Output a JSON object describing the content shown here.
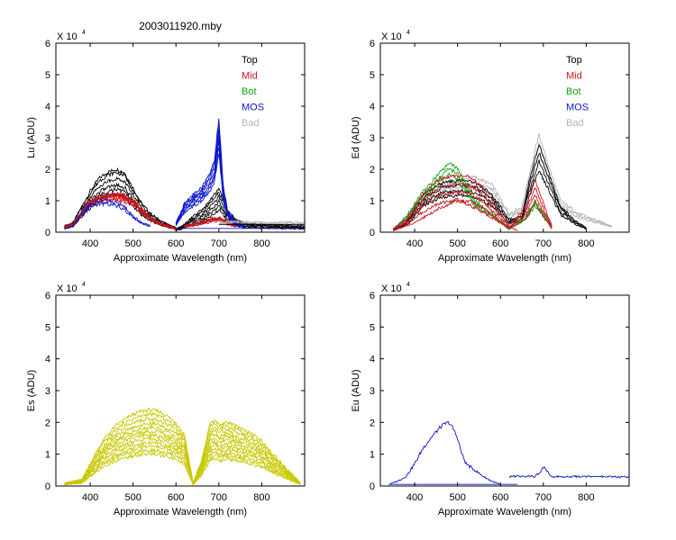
{
  "figure_title": "2003011920.mby",
  "colors": {
    "Top": "#000000",
    "Mid": "#c8141e",
    "Bot": "#16a016",
    "MOS": "#0a14c8",
    "Bad": "#b4b4b4",
    "Es": "#c8c800",
    "Eu": "#0a14c8"
  },
  "chart_data": [
    {
      "type": "line",
      "id": "lu",
      "xlabel": "Approximate Wavelength (nm)",
      "ylabel": "Lu (ADU)",
      "exponent_label": "X 10",
      "exponent": "4",
      "xlim": [
        320,
        900
      ],
      "ylim": [
        0,
        6
      ],
      "xticks": [
        "400",
        "500",
        "600",
        "700",
        "800"
      ],
      "yticks": [
        "0",
        "1",
        "2",
        "3",
        "4",
        "5",
        "6"
      ],
      "legend": [
        "Top",
        "Mid",
        "Bot",
        "MOS",
        "Bad"
      ],
      "series": [
        {
          "name": "Top",
          "color_key": "Top",
          "count": 6,
          "x": [
            340,
            360,
            380,
            400,
            420,
            440,
            460,
            480,
            500,
            520,
            540,
            560,
            580,
            600
          ],
          "values": [
            0.2,
            0.3,
            0.8,
            1.3,
            1.7,
            1.9,
            2.0,
            1.9,
            1.4,
            0.9,
            0.6,
            0.4,
            0.25,
            0.15
          ],
          "scale": [
            1.0,
            0.95,
            0.85,
            0.75,
            0.68,
            0.6
          ]
        },
        {
          "name": "Top",
          "color_key": "Top",
          "count": 6,
          "x": [
            600,
            620,
            640,
            660,
            680,
            690,
            700,
            710,
            720,
            740,
            760,
            800,
            900
          ],
          "values": [
            0.1,
            0.25,
            0.5,
            0.7,
            1.0,
            1.2,
            1.4,
            1.1,
            0.7,
            0.4,
            0.3,
            0.25,
            0.2
          ],
          "scale": [
            1.0,
            0.9,
            0.8,
            0.7,
            0.6,
            0.5
          ]
        },
        {
          "name": "Mid",
          "color_key": "Mid",
          "count": 4,
          "x": [
            340,
            360,
            380,
            400,
            420,
            440,
            460,
            480,
            500,
            520,
            540,
            560,
            580,
            600
          ],
          "values": [
            0.15,
            0.25,
            0.6,
            1.0,
            1.1,
            1.15,
            1.2,
            1.15,
            1.0,
            0.7,
            0.45,
            0.3,
            0.2,
            0.1
          ],
          "scale": [
            1.0,
            0.95,
            0.9,
            0.85
          ]
        },
        {
          "name": "Mid",
          "color_key": "Mid",
          "count": 3,
          "x": [
            620,
            640,
            660,
            680,
            700,
            710,
            720,
            740
          ],
          "values": [
            0.2,
            0.25,
            0.3,
            0.4,
            0.45,
            0.4,
            0.3,
            0.2
          ],
          "scale": [
            1.0,
            0.9,
            0.8
          ]
        },
        {
          "name": "MOS",
          "color_key": "MOS",
          "count": 7,
          "x": [
            600,
            620,
            640,
            660,
            680,
            690,
            695,
            700,
            705,
            710,
            720,
            740,
            760
          ],
          "values": [
            0.3,
            0.9,
            1.2,
            1.4,
            1.9,
            2.3,
            3.0,
            3.6,
            2.6,
            1.5,
            0.7,
            0.3,
            0.2
          ],
          "scale": [
            1.0,
            0.95,
            0.9,
            0.85,
            0.8,
            0.75,
            0.7
          ]
        },
        {
          "name": "MOS",
          "color_key": "MOS",
          "count": 2,
          "x": [
            340,
            360,
            380,
            400,
            420,
            440,
            460,
            480,
            500,
            520,
            540
          ],
          "values": [
            0.1,
            0.2,
            0.6,
            0.9,
            1.0,
            1.0,
            0.95,
            0.8,
            0.5,
            0.3,
            0.2
          ],
          "scale": [
            1.0,
            0.9
          ]
        },
        {
          "name": "Bad",
          "color_key": "Bad",
          "count": 2,
          "x": [
            700,
            740,
            780,
            820,
            860,
            900
          ],
          "values": [
            0.3,
            0.35,
            0.32,
            0.3,
            0.32,
            0.3
          ],
          "scale": [
            1.0,
            0.9
          ]
        },
        {
          "name": "Top",
          "color_key": "Top",
          "count": 1,
          "x": [
            700,
            900
          ],
          "values": [
            0.25,
            0.25
          ],
          "scale": [
            1.0
          ]
        },
        {
          "name": "MOS",
          "color_key": "MOS",
          "count": 1,
          "x": [
            600,
            900
          ],
          "values": [
            0.12,
            0.12
          ],
          "scale": [
            1.0
          ]
        }
      ]
    },
    {
      "type": "line",
      "id": "ed",
      "xlabel": "Approximate Wavelength (nm)",
      "ylabel": "Ed  (ADU)",
      "exponent_label": "X 10",
      "exponent": "4",
      "xlim": [
        320,
        900
      ],
      "ylim": [
        0,
        6
      ],
      "xticks": [
        "400",
        "500",
        "600",
        "700",
        "800"
      ],
      "yticks": [
        "0",
        "1",
        "2",
        "3",
        "4",
        "5",
        "6"
      ],
      "legend": [
        "Top",
        "Mid",
        "Bot",
        "MOS",
        "Bad"
      ],
      "series": [
        {
          "name": "Bad",
          "color_key": "Bad",
          "count": 3,
          "x": [
            350,
            380,
            420,
            460,
            500,
            540,
            580,
            620,
            650,
            670,
            690,
            710,
            740,
            780,
            820,
            860
          ],
          "values": [
            0.1,
            0.4,
            1.2,
            1.5,
            1.6,
            1.75,
            1.5,
            0.6,
            0.8,
            2.0,
            3.1,
            2.2,
            1.0,
            0.6,
            0.4,
            0.2
          ],
          "scale": [
            1.0,
            0.9,
            0.8
          ]
        },
        {
          "name": "Top",
          "color_key": "Top",
          "count": 4,
          "x": [
            350,
            380,
            420,
            460,
            500,
            540,
            580,
            620,
            650,
            670,
            690,
            710,
            740,
            780,
            800
          ],
          "values": [
            0.1,
            0.3,
            1.2,
            1.55,
            1.65,
            1.6,
            1.2,
            0.4,
            0.5,
            1.8,
            2.8,
            2.0,
            0.8,
            0.3,
            0.15
          ],
          "scale": [
            1.0,
            0.9,
            0.8,
            0.7
          ]
        },
        {
          "name": "Bot",
          "color_key": "Bot",
          "count": 3,
          "x": [
            350,
            380,
            420,
            460,
            480,
            500,
            520,
            540,
            560,
            580,
            620,
            660,
            680,
            700,
            720
          ],
          "values": [
            0.1,
            0.5,
            1.3,
            1.9,
            2.2,
            2.0,
            1.5,
            1.0,
            0.8,
            0.6,
            0.1,
            0.5,
            1.0,
            0.6,
            0.2
          ],
          "scale": [
            1.0,
            0.92,
            0.84
          ]
        },
        {
          "name": "Mid",
          "color_key": "Mid",
          "count": 4,
          "x": [
            350,
            380,
            420,
            460,
            500,
            530,
            560,
            590,
            620,
            660,
            680,
            700,
            720
          ],
          "values": [
            0.1,
            0.4,
            1.2,
            1.7,
            1.8,
            1.75,
            1.4,
            0.8,
            0.2,
            0.8,
            1.7,
            0.9,
            0.2
          ],
          "scale": [
            1.0,
            0.85,
            0.7,
            0.55
          ]
        },
        {
          "name": "Mid",
          "color_key": "Mid",
          "count": 1,
          "x": [
            350,
            400,
            450,
            500,
            550,
            600,
            640
          ],
          "values": [
            0.05,
            0.3,
            0.7,
            1.05,
            0.7,
            0.3,
            0.05
          ],
          "scale": [
            1.0
          ]
        }
      ]
    },
    {
      "type": "line",
      "id": "es",
      "xlabel": "Approximate Wavelength (nm)",
      "ylabel": "Es  (ADU)",
      "exponent_label": "X 10",
      "exponent": "4",
      "xlim": [
        320,
        900
      ],
      "ylim": [
        0,
        6
      ],
      "xticks": [
        "400",
        "500",
        "600",
        "700",
        "800"
      ],
      "yticks": [
        "0",
        "1",
        "2",
        "3",
        "4",
        "5",
        "6"
      ],
      "legend": [],
      "series": [
        {
          "name": "Es",
          "color_key": "Es",
          "count": 12,
          "x": [
            340,
            380,
            400,
            420,
            440,
            460,
            480,
            500,
            520,
            540,
            560,
            580,
            600,
            620,
            640
          ],
          "values": [
            0.1,
            0.2,
            0.7,
            1.2,
            1.6,
            1.9,
            2.1,
            2.25,
            2.35,
            2.4,
            2.35,
            2.2,
            2.0,
            1.6,
            0.1
          ],
          "scale": [
            1.0,
            0.94,
            0.88,
            0.82,
            0.77,
            0.72,
            0.67,
            0.62,
            0.57,
            0.52,
            0.47,
            0.42
          ]
        },
        {
          "name": "Es",
          "color_key": "Es",
          "count": 12,
          "x": [
            640,
            660,
            680,
            690,
            700,
            710,
            720,
            740,
            760,
            780,
            800,
            820,
            840,
            860,
            880,
            890
          ],
          "values": [
            0.1,
            0.8,
            2.0,
            2.1,
            1.9,
            1.95,
            2.0,
            1.9,
            1.75,
            1.6,
            1.4,
            1.1,
            0.8,
            0.5,
            0.25,
            0.1
          ],
          "scale": [
            1.0,
            0.94,
            0.88,
            0.82,
            0.77,
            0.72,
            0.67,
            0.62,
            0.57,
            0.52,
            0.47,
            0.42
          ]
        }
      ]
    },
    {
      "type": "line",
      "id": "eu",
      "xlabel": "Approximate Wavelength (nm)",
      "ylabel": "Eu  (ADU)",
      "exponent_label": "X 10",
      "exponent": "4",
      "xlim": [
        320,
        900
      ],
      "ylim": [
        0,
        6
      ],
      "xticks": [
        "400",
        "500",
        "600",
        "700",
        "800"
      ],
      "yticks": [
        "0",
        "1",
        "2",
        "3",
        "4",
        "5",
        "6"
      ],
      "legend": [],
      "series": [
        {
          "name": "Eu",
          "color_key": "Eu",
          "count": 1,
          "x": [
            340,
            360,
            380,
            400,
            420,
            440,
            460,
            470,
            480,
            490,
            500,
            510,
            520,
            540,
            560,
            580,
            600
          ],
          "values": [
            0.05,
            0.15,
            0.3,
            0.7,
            1.2,
            1.55,
            1.85,
            1.95,
            2.0,
            1.8,
            1.5,
            1.0,
            0.7,
            0.5,
            0.3,
            0.15,
            0.05
          ],
          "scale": [
            1.0
          ]
        },
        {
          "name": "Eu",
          "color_key": "Eu",
          "count": 1,
          "x": [
            340,
            640
          ],
          "values": [
            0.05,
            0.05
          ],
          "scale": [
            1.0
          ]
        },
        {
          "name": "Eu",
          "color_key": "Eu",
          "count": 1,
          "x": [
            620,
            660,
            680,
            690,
            700,
            710,
            720,
            760,
            800,
            900
          ],
          "values": [
            0.3,
            0.3,
            0.3,
            0.4,
            0.6,
            0.45,
            0.3,
            0.3,
            0.3,
            0.28
          ],
          "scale": [
            1.0
          ]
        }
      ]
    }
  ]
}
